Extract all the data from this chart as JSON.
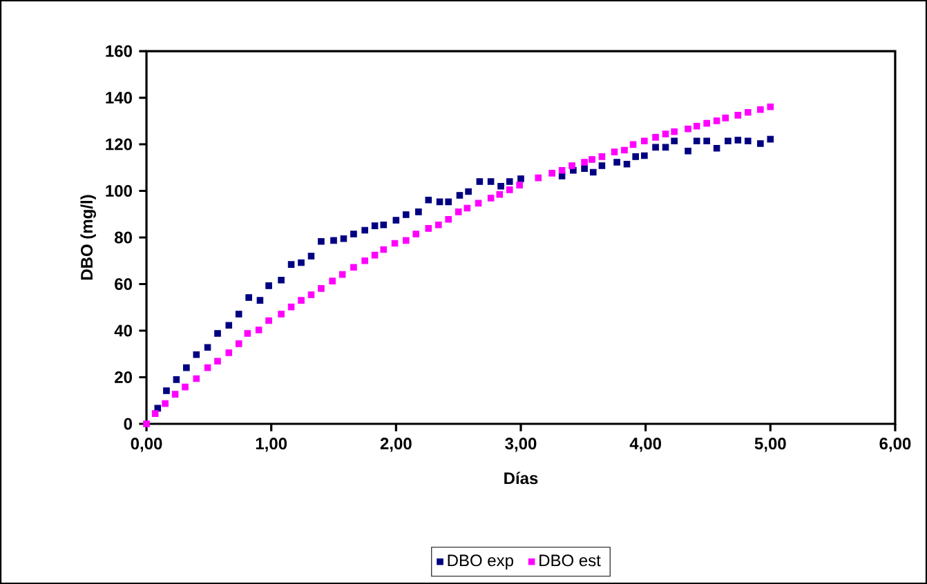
{
  "chart_data": {
    "type": "scatter",
    "xlabel": "Días",
    "ylabel": "DBO (mg/l)",
    "xlim": [
      0,
      6
    ],
    "ylim": [
      0,
      160
    ],
    "xticks": [
      {
        "value": 0,
        "label": "0,00"
      },
      {
        "value": 1,
        "label": "1,00"
      },
      {
        "value": 2,
        "label": "2,00"
      },
      {
        "value": 3,
        "label": "3,00"
      },
      {
        "value": 4,
        "label": "4,00"
      },
      {
        "value": 5,
        "label": "5,00"
      },
      {
        "value": 6,
        "label": "6,00"
      }
    ],
    "yticks": [
      0,
      20,
      40,
      60,
      80,
      100,
      120,
      140,
      160
    ],
    "legend": "bottom",
    "marker": "square",
    "grid": false,
    "series": [
      {
        "name": "DBO exp",
        "color": "#000080",
        "x": [
          0.09,
          0.16,
          0.24,
          0.32,
          0.4,
          0.49,
          0.57,
          0.66,
          0.74,
          0.82,
          0.91,
          0.98,
          1.08,
          1.16,
          1.24,
          1.32,
          1.4,
          1.5,
          1.58,
          1.66,
          1.75,
          1.83,
          1.9,
          2.0,
          2.08,
          2.18,
          2.26,
          2.35,
          2.42,
          2.51,
          2.58,
          2.67,
          2.76,
          2.84,
          2.91,
          3.0,
          3.33,
          3.42,
          3.51,
          3.58,
          3.65,
          3.77,
          3.85,
          3.92,
          3.99,
          4.08,
          4.16,
          4.23,
          4.34,
          4.41,
          4.49,
          4.57,
          4.66,
          4.74,
          4.82,
          4.92,
          5.0
        ],
        "values": [
          6.7,
          14.2,
          19,
          24.1,
          29.7,
          32.8,
          38.8,
          42.3,
          47.1,
          54.2,
          53,
          59.3,
          61.7,
          68.4,
          69.2,
          72,
          78.3,
          78.7,
          79.5,
          81.5,
          83.1,
          85,
          85.4,
          87.4,
          89.8,
          91,
          96.1,
          95.3,
          95.3,
          98.1,
          99.7,
          104,
          104,
          102,
          104,
          105.2,
          106.4,
          108.8,
          109.6,
          108,
          110.8,
          112.3,
          111.5,
          114.7,
          115.1,
          118.7,
          118.7,
          121.4,
          117.1,
          121.4,
          121.4,
          118.3,
          121.4,
          121.8,
          121.4,
          120.3,
          122.2
        ]
      },
      {
        "name": "DBO est",
        "color": "#ff00ff",
        "x": [
          0,
          0.07,
          0.15,
          0.23,
          0.31,
          0.4,
          0.49,
          0.57,
          0.66,
          0.74,
          0.81,
          0.9,
          0.98,
          1.08,
          1.16,
          1.24,
          1.32,
          1.4,
          1.49,
          1.57,
          1.66,
          1.75,
          1.83,
          1.9,
          1.99,
          2.08,
          2.16,
          2.26,
          2.34,
          2.42,
          2.5,
          2.57,
          2.66,
          2.76,
          2.83,
          2.91,
          2.99,
          3.14,
          3.25,
          3.33,
          3.41,
          3.51,
          3.57,
          3.65,
          3.75,
          3.83,
          3.9,
          3.99,
          4.08,
          4.16,
          4.23,
          4.34,
          4.41,
          4.49,
          4.57,
          4.64,
          4.74,
          4.82,
          4.92,
          5.0
        ],
        "values": [
          0,
          4.4,
          8.7,
          12.7,
          15.8,
          19.4,
          24.1,
          26.9,
          30.5,
          34.4,
          38.8,
          40.3,
          44.3,
          47.1,
          50.2,
          53,
          55.4,
          58.1,
          61.3,
          64.1,
          67.2,
          70,
          72.4,
          74.8,
          77.5,
          78.7,
          81.5,
          83.9,
          85.4,
          87.8,
          91,
          92.6,
          94.7,
          96.9,
          98.5,
          100.5,
          102.5,
          105.6,
          107.6,
          108.8,
          110.8,
          112.3,
          113.5,
          114.7,
          116.7,
          117.5,
          119.9,
          121.4,
          123,
          124.4,
          125.4,
          126.6,
          127.8,
          129,
          130.1,
          131.3,
          132.5,
          133.7,
          134.9,
          136.1
        ]
      }
    ]
  }
}
